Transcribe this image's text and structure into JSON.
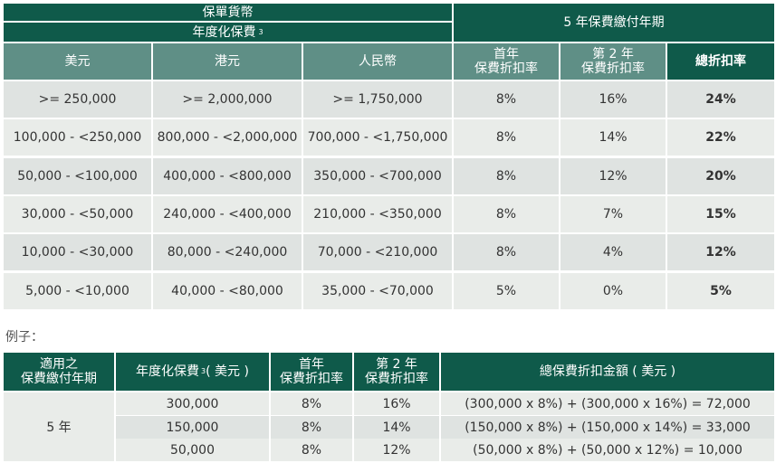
{
  "table1": {
    "hdr_policy_currency": "保單貨幣",
    "hdr_annualized_premium": "年度化保費",
    "hdr_annualized_sup": "3",
    "hdr_payment_term": "5 年保費繳付年期",
    "hdr_usd": "美元",
    "hdr_hkd": "港元",
    "hdr_rmb": "人民幣",
    "hdr_first_year_l1": "首年",
    "hdr_first_year_l2": "保費折扣率",
    "hdr_second_year_l1": "第 2 年",
    "hdr_second_year_l2": "保費折扣率",
    "hdr_total": "總折扣率",
    "rows": [
      {
        "usd": ">= 250,000",
        "hkd": ">= 2,000,000",
        "rmb": ">= 1,750,000",
        "y1": "8%",
        "y2": "16%",
        "total": "24%"
      },
      {
        "usd": "100,000 - <250,000",
        "hkd": "800,000 - <2,000,000",
        "rmb": "700,000 - <1,750,000",
        "y1": "8%",
        "y2": "14%",
        "total": "22%"
      },
      {
        "usd": "50,000 - <100,000",
        "hkd": "400,000 - <800,000",
        "rmb": "350,000 - <700,000",
        "y1": "8%",
        "y2": "12%",
        "total": "20%"
      },
      {
        "usd": "30,000 - <50,000",
        "hkd": "240,000 - <400,000",
        "rmb": "210,000 - <350,000",
        "y1": "8%",
        "y2": "7%",
        "total": "15%"
      },
      {
        "usd": "10,000 - <30,000",
        "hkd": "80,000 - <240,000",
        "rmb": "70,000 - <210,000",
        "y1": "8%",
        "y2": "4%",
        "total": "12%"
      },
      {
        "usd": "5,000 - <10,000",
        "hkd": "40,000 - <80,000",
        "rmb": "35,000 - <70,000",
        "y1": "5%",
        "y2": "0%",
        "total": "5%"
      }
    ]
  },
  "example_label": "例子：",
  "table2": {
    "hdr_term_l1": "適用之",
    "hdr_term_l2": "保費繳付年期",
    "hdr_premium": "年度化保費",
    "hdr_premium_sup": "3",
    "hdr_premium_unit": "( 美元 )",
    "hdr_first_l1": "首年",
    "hdr_first_l2": "保費折扣率",
    "hdr_second_l1": "第 2 年",
    "hdr_second_l2": "保費折扣率",
    "hdr_total": "總保費折扣金額 ( 美元 )",
    "term_value": "5 年",
    "rows": [
      {
        "premium": "300,000",
        "y1": "8%",
        "y2": "16%",
        "calc": "(300,000 x 8%) + (300,000 x 16%) = 72,000"
      },
      {
        "premium": "150,000",
        "y1": "8%",
        "y2": "14%",
        "calc": "(150,000 x 8%) + (150,000 x 14%) = 33,000"
      },
      {
        "premium": "50,000",
        "y1": "8%",
        "y2": "12%",
        "calc": "(50,000 x 8%) + (50,000 x 12%) = 10,000"
      }
    ]
  },
  "colors": {
    "header_dark": "#0f5a4a",
    "header_light": "#5f8f86",
    "row_bg": "#dfe3e1",
    "row_alt": "#e9ece9"
  }
}
